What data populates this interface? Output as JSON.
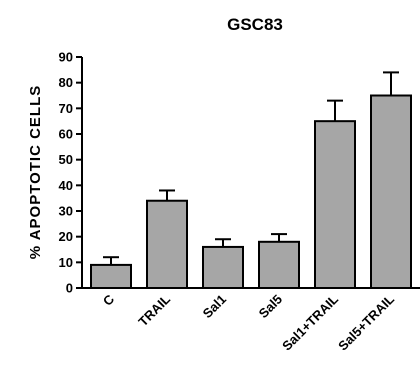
{
  "chart_data": {
    "type": "bar",
    "title": "GSC83",
    "ylabel": "% APOPTOTIC CELLS",
    "xlabel": "",
    "ylim": [
      0,
      90
    ],
    "yticks": [
      0,
      10,
      20,
      30,
      40,
      50,
      60,
      70,
      80,
      90
    ],
    "categories": [
      "C",
      "TRAIL",
      "Sal1",
      "Sal5",
      "Sal1+TRAIL",
      "Sal5+TRAIL"
    ],
    "values": [
      9,
      34,
      16,
      18,
      65,
      75
    ],
    "error_upper": [
      3,
      4,
      3,
      3,
      8,
      9
    ],
    "bar_color": "#a6a6a6",
    "edge_color": "#000000",
    "grid": false,
    "legend": "none"
  }
}
